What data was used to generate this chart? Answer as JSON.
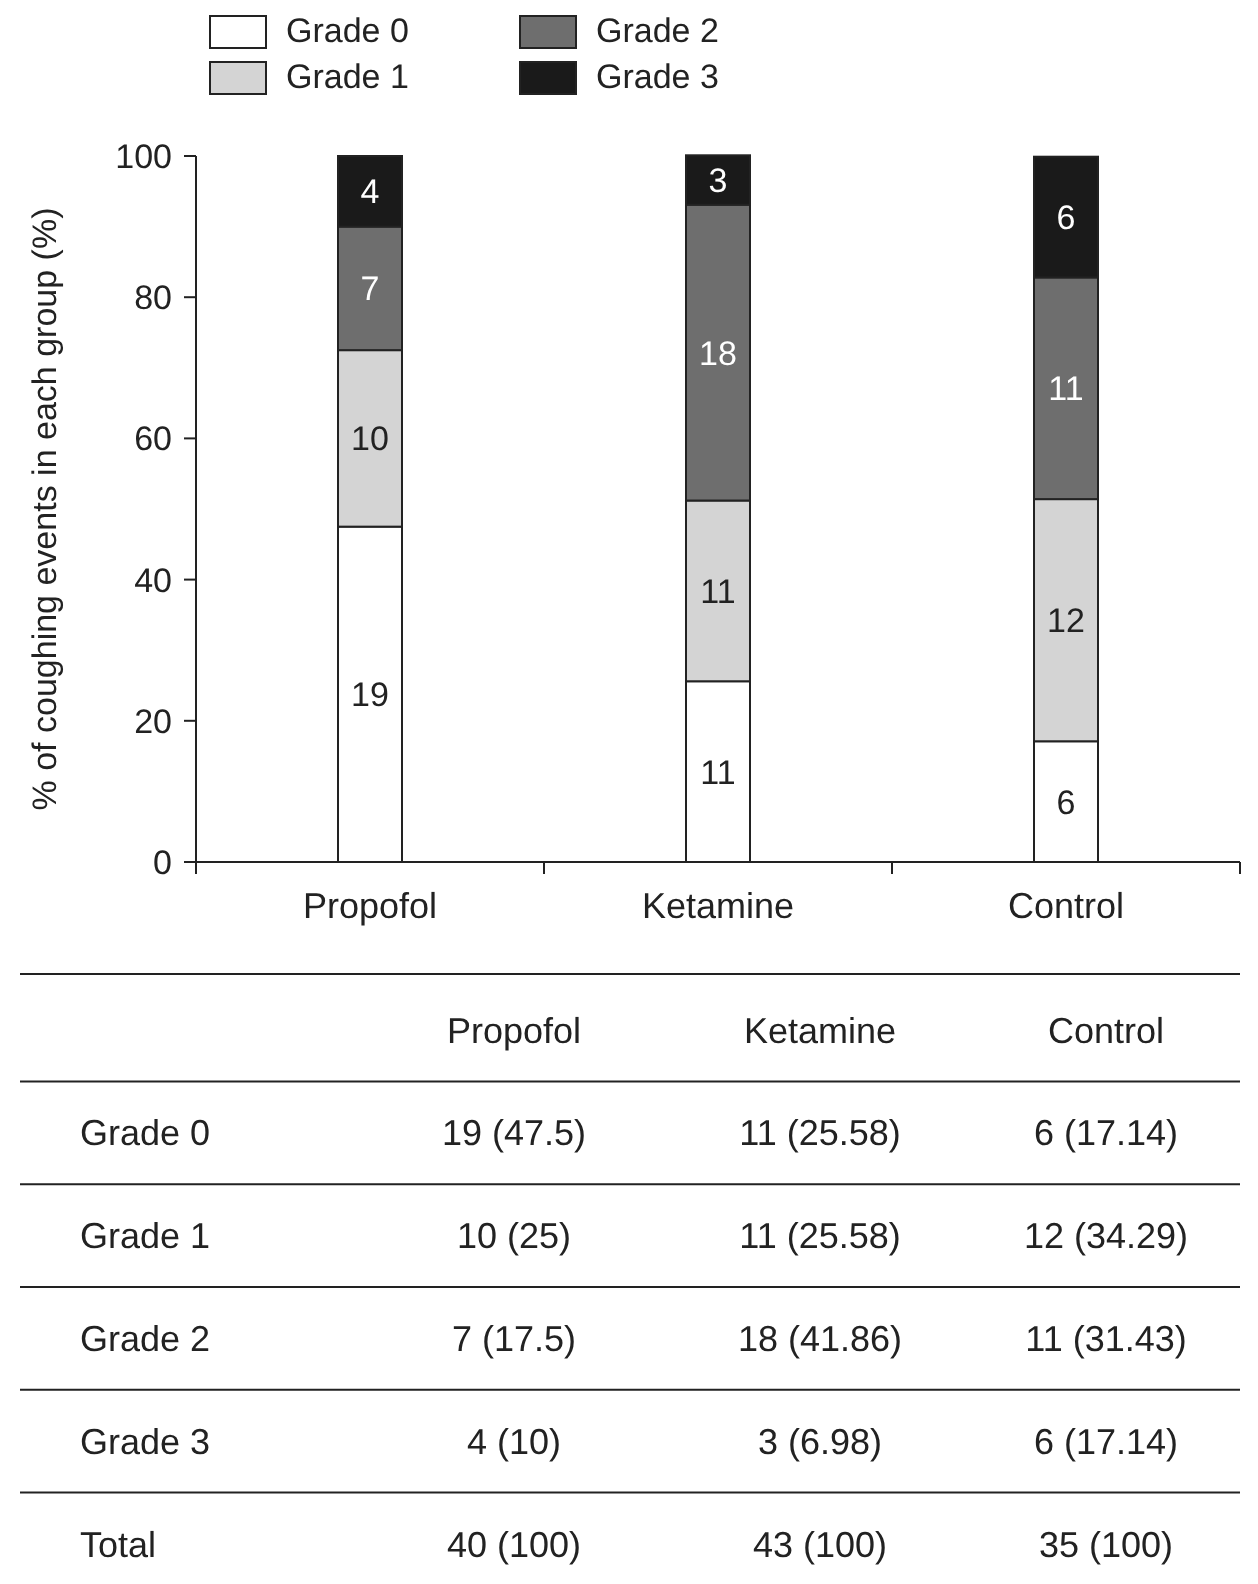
{
  "chart_data": {
    "type": "bar",
    "stacked": true,
    "categories": [
      "Propofol",
      "Ketamine",
      "Control"
    ],
    "ylabel": "% of coughing events in each group (%)",
    "ylim": [
      0,
      100
    ],
    "yticks": [
      0,
      20,
      40,
      60,
      80,
      100
    ],
    "legend": "top",
    "series": [
      {
        "name": "Grade 0",
        "color": "#ffffff",
        "values": [
          47.5,
          25.6,
          17.1
        ]
      },
      {
        "name": "Grade 1",
        "color": "#d4d4d4",
        "values": [
          25,
          25.6,
          34.3
        ]
      },
      {
        "name": "Grade 2",
        "color": "#6e6e6e",
        "values": [
          17.5,
          41.9,
          31.4
        ]
      },
      {
        "name": "Grade 3",
        "color": "#1a1a1a",
        "values": [
          10,
          7,
          17.1
        ]
      }
    ],
    "annotations": [
      "19",
      "11",
      "6",
      "10",
      "11",
      "12",
      "7",
      "18",
      "11",
      "4",
      "3",
      "6",
      "19 (47.5)",
      "11 (25.58)",
      "6 (17.14)",
      "10 (25)",
      "11 (25.58)",
      "12 (34.29)",
      "7 (17.5)",
      "18 (41.86)",
      "11 (31.43)",
      "4 (10)",
      "3 (6.98)",
      "6 (17.14)",
      "Total",
      "40 (100)",
      "43 (100)",
      "35 (100)"
    ]
  }
}
